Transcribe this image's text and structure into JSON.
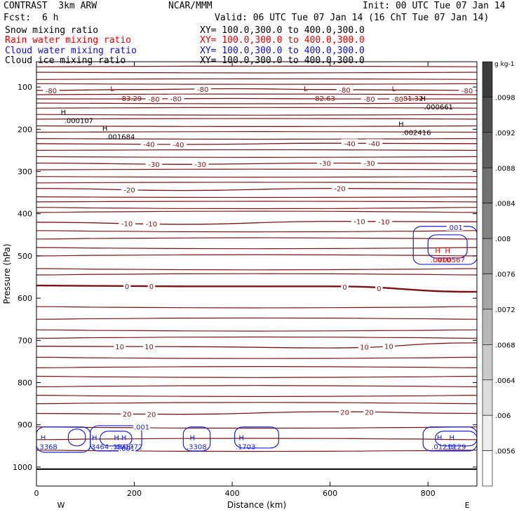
{
  "header": {
    "model": "CONTRAST  3km ARW",
    "center": "NCAR/MMM",
    "init": "Init: 00 UTC Tue 07 Jan 14",
    "fcst_label": "Fcst:",
    "fcst_value": "6 h",
    "valid": "Valid: 06 UTC Tue 07 Jan 14 (16 ChT Tue 07 Jan 14)"
  },
  "fields": [
    {
      "name": "Snow mixing ratio",
      "xy": "XY= 100.0,300.0 to 400.0,300.0",
      "color": "#000000"
    },
    {
      "name": "Rain water mixing ratio",
      "xy": "XY= 100.0,300.0 to 400.0,300.0",
      "color": "#e00000"
    },
    {
      "name": "Cloud water mixing ratio",
      "xy": "XY= 100.0,300.0 to 400.0,300.0",
      "color": "#1010c0"
    },
    {
      "name": "Cloud ice mixing ratio",
      "xy": "XY= 100.0,300.0 to 400.0,300.0",
      "color": "#000000"
    }
  ],
  "colors": {
    "isotherm": "#7a1414",
    "cloud_water": "#1a22cc",
    "rain": "#d01010",
    "axis": "#000000"
  },
  "chart_data": {
    "type": "contour",
    "title": "CONTRAST 3km ARW cross section",
    "xlabel": "Distance (km)",
    "ylabel": "Pressure (hPa)",
    "xlim": [
      0,
      900
    ],
    "ylim": [
      1045,
      40
    ],
    "x_ticks": [
      0,
      200,
      400,
      600,
      800
    ],
    "y_ticks": [
      100,
      200,
      300,
      400,
      500,
      600,
      700,
      800,
      900,
      1000
    ],
    "x_end_labels": {
      "left": "W",
      "right": "E"
    },
    "temperature_contours": [
      {
        "level": -80,
        "points": [
          [
            0,
            108
          ],
          [
            200,
            106
          ],
          [
            400,
            104
          ],
          [
            600,
            106
          ],
          [
            900,
            108
          ]
        ],
        "labels_x": [
          30,
          340,
          630,
          880
        ],
        "label": "-80"
      },
      {
        "level": -80,
        "points": [
          [
            0,
            128
          ],
          [
            200,
            128
          ],
          [
            400,
            127
          ],
          [
            600,
            128
          ],
          [
            900,
            128
          ]
        ],
        "labels_x": [
          240,
          285,
          680,
          738
        ],
        "label": "-80"
      },
      {
        "level": -40,
        "points": [
          [
            0,
            234
          ],
          [
            300,
            236
          ],
          [
            600,
            233
          ],
          [
            900,
            234
          ]
        ],
        "labels_x": [
          230,
          290,
          640,
          690
        ],
        "label": "-40"
      },
      {
        "level": -30,
        "points": [
          [
            0,
            280
          ],
          [
            300,
            283
          ],
          [
            600,
            280
          ],
          [
            900,
            281
          ]
        ],
        "labels_x": [
          240,
          335,
          590,
          680
        ],
        "label": "-30"
      },
      {
        "level": -20,
        "points": [
          [
            0,
            340
          ],
          [
            300,
            345
          ],
          [
            600,
            340
          ],
          [
            900,
            342
          ]
        ],
        "labels_x": [
          190,
          620
        ],
        "label": "-20"
      },
      {
        "level": -10,
        "points": [
          [
            0,
            420
          ],
          [
            300,
            425
          ],
          [
            600,
            418
          ],
          [
            900,
            419
          ]
        ],
        "labels_x": [
          185,
          235,
          660,
          710
        ],
        "label": "-10"
      },
      {
        "level": 0,
        "points": [
          [
            0,
            570
          ],
          [
            300,
            572
          ],
          [
            600,
            572
          ],
          [
            900,
            585
          ]
        ],
        "labels_x": [
          185,
          235,
          630,
          700
        ],
        "label": "0"
      },
      {
        "level": 10,
        "points": [
          [
            0,
            714
          ],
          [
            300,
            715
          ],
          [
            600,
            718
          ],
          [
            900,
            706
          ]
        ],
        "labels_x": [
          170,
          230,
          670,
          720
        ],
        "label": "10"
      },
      {
        "level": 20,
        "points": [
          [
            0,
            873
          ],
          [
            300,
            875
          ],
          [
            600,
            869
          ],
          [
            900,
            873
          ]
        ],
        "labels_x": [
          185,
          235,
          630,
          680
        ],
        "label": "20"
      }
    ],
    "plain_isotherm_levels": [
      52,
      65,
      82,
      92,
      118,
      138,
      150,
      165,
      176,
      192,
      207,
      222,
      250,
      265,
      296,
      312,
      327,
      360,
      372,
      385,
      397,
      440,
      460,
      480,
      500,
      530,
      545,
      620,
      650,
      675,
      695,
      740,
      765,
      785,
      810,
      830,
      850,
      905,
      935,
      960
    ],
    "lows": [
      {
        "x": 155,
        "p": 116,
        "value": "-83.29"
      },
      {
        "x": 550,
        "p": 116,
        "value": "-82.63"
      },
      {
        "x": 730,
        "p": 116,
        "value": "-81.32"
      }
    ],
    "snow_highs": [
      {
        "x": 55,
        "p": 172,
        "value": ".000107"
      },
      {
        "x": 140,
        "p": 210,
        "value": ".001684"
      },
      {
        "x": 790,
        "p": 140,
        "value": ".000661"
      },
      {
        "x": 745,
        "p": 200,
        "value": ".002416"
      }
    ],
    "cloud_highs": [
      {
        "x": 5,
        "p": 943,
        "value": ".3368"
      },
      {
        "x": 110,
        "p": 943,
        "value": ".3464"
      },
      {
        "x": 155,
        "p": 943,
        "value": ".1848"
      },
      {
        "x": 170,
        "p": 943,
        "value": ".001772"
      },
      {
        "x": 310,
        "p": 943,
        "value": ".3308"
      },
      {
        "x": 410,
        "p": 943,
        "value": ".1703"
      },
      {
        "x": 815,
        "p": 943,
        "value": ".01212"
      },
      {
        "x": 840,
        "p": 943,
        "value": ".0129"
      }
    ],
    "rain_highs": [
      {
        "x": 820,
        "p": 500,
        "value": ".0010"
      },
      {
        "x": 840,
        "p": 500,
        "value": ".000567"
      }
    ],
    "cloud_contour_labels": [
      {
        "x": 855,
        "p": 432,
        "value": ".001"
      },
      {
        "x": 215,
        "p": 905,
        "value": ".001"
      },
      {
        "x": 185,
        "p": 955,
        "value": ".001"
      }
    ],
    "colorbar": {
      "unit": "g kg-1",
      "ticks": [
        ".0098",
        ".0092",
        ".0088",
        ".0084",
        ".008",
        ".0076",
        ".0072",
        ".0068",
        ".0064",
        ".006",
        ".0056"
      ]
    }
  }
}
